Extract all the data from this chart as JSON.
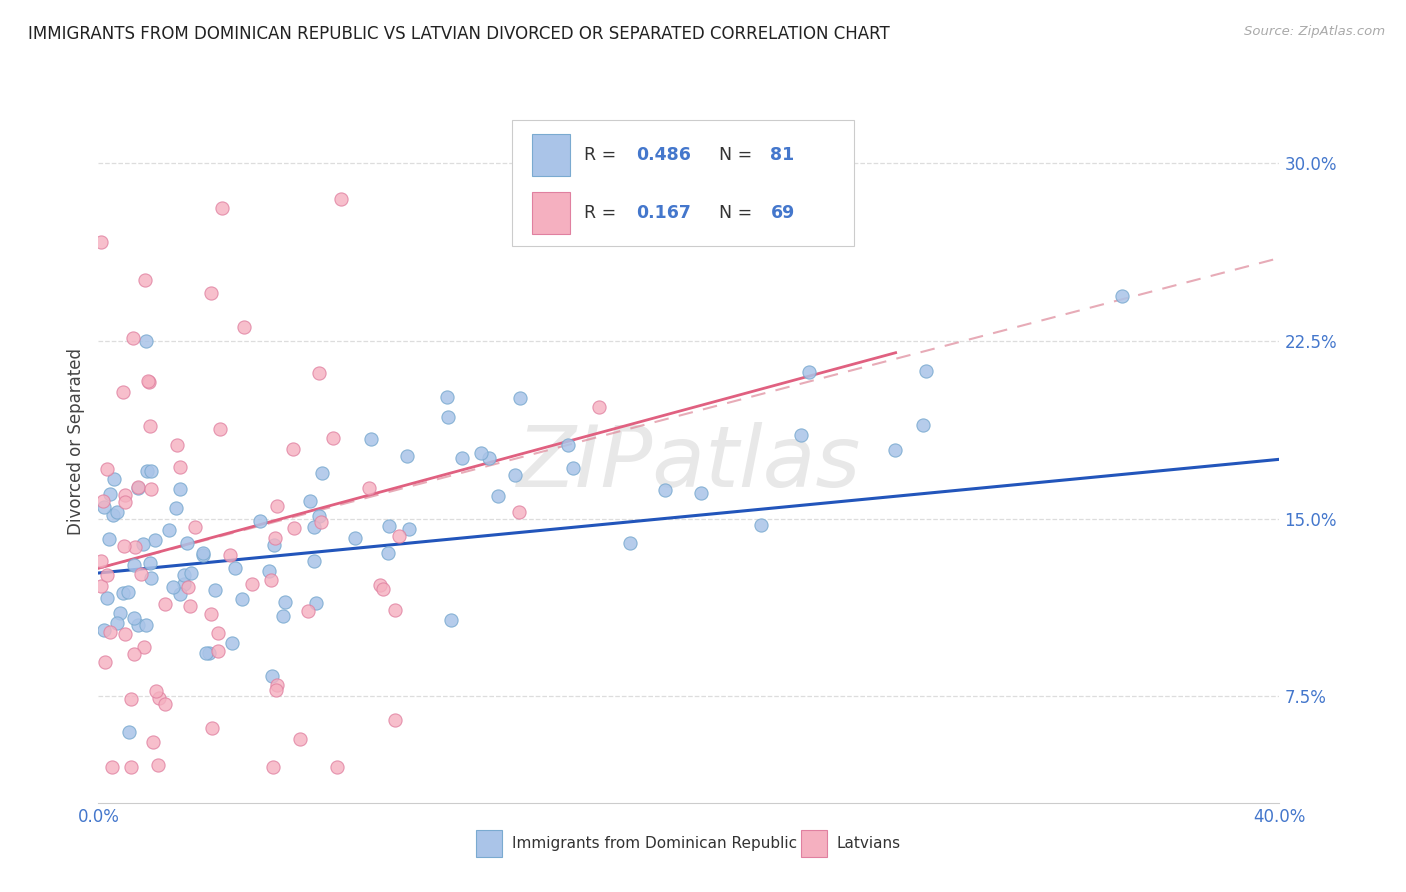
{
  "title": "IMMIGRANTS FROM DOMINICAN REPUBLIC VS LATVIAN DIVORCED OR SEPARATED CORRELATION CHART",
  "source": "Source: ZipAtlas.com",
  "ylabel": "Divorced or Separated",
  "ytick_labels": [
    "7.5%",
    "15.0%",
    "22.5%",
    "30.0%"
  ],
  "ytick_values": [
    0.075,
    0.15,
    0.225,
    0.3
  ],
  "xlim": [
    0.0,
    0.4
  ],
  "ylim": [
    0.03,
    0.335
  ],
  "blue_color": "#aac4e8",
  "blue_edge": "#7aaad0",
  "blue_line": "#2255bb",
  "pink_color": "#f5b0c0",
  "pink_edge": "#e080a0",
  "pink_line": "#e06080",
  "pink_dash_color": "#e0a0b0",
  "watermark": "ZIPatlas",
  "background_color": "#ffffff",
  "grid_color": "#dddddd",
  "title_fontsize": 12,
  "tick_color": "#4477cc",
  "legend_R1": "0.486",
  "legend_N1": "81",
  "legend_R2": "0.167",
  "legend_N2": "69",
  "legend_label1": "Immigrants from Dominican Republic",
  "legend_label2": "Latvians"
}
